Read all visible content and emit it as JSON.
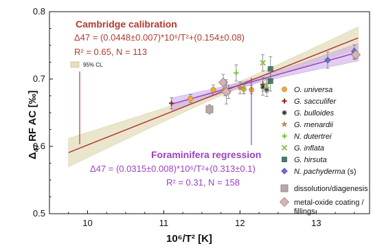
{
  "chart_data": {
    "type": "scatter",
    "xlabel": "10⁶/T² [K]",
    "ylabel_main": "Δ",
    "ylabel_sub": "47",
    "ylabel_rest": " RF AC [‰]",
    "xlim": [
      9.5,
      13.7
    ],
    "ylim": [
      0.5,
      0.8
    ],
    "xticks": [
      10,
      11,
      12,
      13
    ],
    "yticks": [
      0.5,
      0.6,
      0.7,
      0.8
    ],
    "xtick_labels": [
      "10",
      "11",
      "12",
      "13"
    ],
    "ytick_labels": [
      "0.5",
      "0.6",
      "0.7",
      "0.8"
    ],
    "annotations": {
      "cambridge_title": "Cambridge calibration",
      "cambridge_eq": "Δ47 = (0.0448±0.007)*10⁶/T²+(0.154±0.08)",
      "cambridge_r2": "R² = 0.65, N = 113",
      "cl_label": "95% CL",
      "foram_title": "Foraminifera regression",
      "foram_eq": "Δ47 = (0.0315±0.008)*10⁶/T²+(0.313±0.1)",
      "foram_r2": "R² = 0.31, N = 158"
    },
    "regressions": [
      {
        "id": "cambridge",
        "slope": 0.0448,
        "intercept": 0.154,
        "x_range": [
          9.75,
          13.55
        ],
        "color": "#b03a2e",
        "band_color": "#d9d2a4"
      },
      {
        "id": "foraminifera",
        "slope": 0.0315,
        "intercept": 0.313,
        "x_range": [
          11.1,
          13.55
        ],
        "color": "#9b3fc2",
        "band_color": "#c9a6e6"
      }
    ],
    "series": [
      {
        "name": "O. universa",
        "italic": true,
        "marker": "circle",
        "color": "#f2a93b",
        "points": [
          [
            11.35,
            0.671,
            0.006
          ],
          [
            11.65,
            0.684,
            0.007
          ],
          [
            11.8,
            0.683,
            0.008
          ],
          [
            12.05,
            0.685,
            0.007
          ],
          [
            12.15,
            0.684,
            0.006
          ],
          [
            13.5,
            0.737,
            0.008
          ]
        ]
      },
      {
        "name": "G. sacculifer",
        "italic": true,
        "marker": "plus",
        "color": "#8b2a1a",
        "points": [
          [
            11.1,
            0.664,
            0.008
          ],
          [
            12.3,
            0.692,
            0.01
          ]
        ]
      },
      {
        "name": "G. bulloides",
        "italic": true,
        "marker": "asterisk",
        "color": "#333333",
        "points": [
          [
            12.3,
            0.688,
            0.012
          ],
          [
            12.35,
            0.684,
            0.01
          ]
        ]
      },
      {
        "name": "G. menardii",
        "italic": true,
        "marker": "star",
        "color": "#d4894a",
        "points": [
          [
            11.85,
            0.681,
            0.01
          ],
          [
            12.0,
            0.687,
            0.009
          ]
        ]
      },
      {
        "name": "N. dutertrei",
        "italic": true,
        "marker": "plus",
        "color": "#7fc241",
        "points": [
          [
            11.95,
            0.709,
            0.012
          ],
          [
            12.05,
            0.686,
            0.008
          ]
        ]
      },
      {
        "name": "G. inflata",
        "italic": true,
        "marker": "cross",
        "color": "#8bc34a",
        "points": [
          [
            12.3,
            0.724,
            0.012
          ],
          [
            12.35,
            0.69,
            0.01
          ]
        ]
      },
      {
        "name": "G. hirsuta",
        "italic": true,
        "marker": "square",
        "color": "#4a7a6a",
        "points": [
          [
            12.4,
            0.715,
            0.018
          ],
          [
            12.4,
            0.697,
            0.015
          ]
        ]
      },
      {
        "name": "N. pachyderma",
        "italic": true,
        "suffix": " (s)",
        "marker": "diamond",
        "color": "#6a6fcf",
        "points": [
          [
            13.15,
            0.728,
            0.012
          ],
          [
            13.5,
            0.741,
            0.01
          ]
        ]
      },
      {
        "name": "dissolution/diagenesis",
        "italic": false,
        "marker": "square-big",
        "color": "#b8a8a8",
        "points": [
          [
            11.6,
            0.655,
            0.007
          ]
        ]
      },
      {
        "name": "metal-oxide coating / fillings",
        "italic": false,
        "marker": "diamond-big",
        "color": "#d2b6b6",
        "points": [
          [
            11.78,
            0.695,
            0.012
          ],
          [
            11.82,
            0.681,
            0.018
          ],
          [
            13.52,
            0.736,
            0.006
          ]
        ]
      }
    ],
    "legend_position": "right",
    "grid": false
  },
  "colors": {
    "cambridge": "#b03a2e",
    "foraminifera": "#9b3fc2",
    "axis": "#111111"
  }
}
